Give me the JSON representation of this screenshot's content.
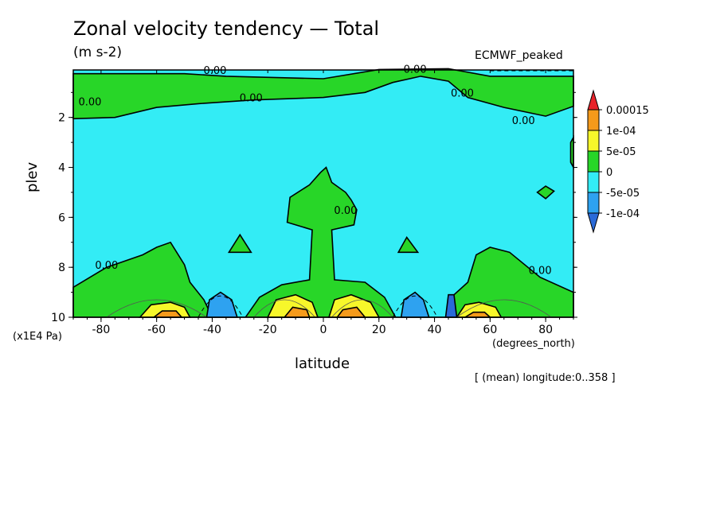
{
  "chart_data": {
    "type": "contour",
    "title": "Zonal velocity tendency — Total",
    "units": "(m s-2)",
    "source": "ECMWF_peaked",
    "xlabel": "latitude",
    "x_unit_label": "(degrees_north)",
    "ylabel": "plev",
    "y_unit_label": "(x1E4 Pa)",
    "note": "[ (mean) longitude:0..358 ]",
    "xlim": [
      -90,
      90
    ],
    "ylim": [
      0.1,
      10
    ],
    "y_inverted": true,
    "x_ticks": [
      -80,
      -60,
      -40,
      -20,
      0,
      20,
      40,
      60,
      80
    ],
    "y_ticks": [
      2,
      4,
      6,
      8,
      10
    ],
    "contour_label": "0.00",
    "colorbar": {
      "levels": [
        "0.00015",
        "1e-04",
        "5e-05",
        "0",
        "-5e-05",
        "-1e-04"
      ],
      "colors": [
        "#e8232a",
        "#f59a1b",
        "#f7f72a",
        "#28d628",
        "#33ecf5",
        "#2ea2f0",
        "#2a6ad8"
      ]
    },
    "regions": [
      {
        "name": "green-top-band",
        "level": "0..5e-05",
        "points": [
          [
            -90,
            0.25
          ],
          [
            -90,
            2.05
          ],
          [
            -75,
            2.0
          ],
          [
            -60,
            1.6
          ],
          [
            -45,
            1.45
          ],
          [
            -25,
            1.3
          ],
          [
            0,
            1.2
          ],
          [
            15,
            1.0
          ],
          [
            25,
            0.6
          ],
          [
            35,
            0.35
          ],
          [
            45,
            0.55
          ],
          [
            52,
            1.2
          ],
          [
            65,
            1.6
          ],
          [
            80,
            1.95
          ],
          [
            90,
            1.55
          ],
          [
            90,
            0.35
          ],
          [
            60,
            0.35
          ],
          [
            45,
            0.05
          ],
          [
            20,
            0.08
          ],
          [
            0,
            0.45
          ],
          [
            -35,
            0.35
          ],
          [
            -50,
            0.25
          ],
          [
            -90,
            0.25
          ]
        ]
      },
      {
        "name": "green-lower-band",
        "level": "0..5e-05",
        "points": [
          [
            -90,
            10
          ],
          [
            -90,
            8.8
          ],
          [
            -78,
            8.0
          ],
          [
            -65,
            7.5
          ],
          [
            -60,
            7.2
          ],
          [
            -55,
            7.0
          ],
          [
            -50,
            7.9
          ],
          [
            -48,
            8.6
          ],
          [
            -43,
            9.3
          ],
          [
            -40,
            10
          ],
          [
            -28,
            10
          ],
          [
            -23,
            9.2
          ],
          [
            -15,
            8.7
          ],
          [
            -5,
            8.5
          ],
          [
            -4,
            6.5
          ],
          [
            -13,
            6.2
          ],
          [
            -12,
            5.2
          ],
          [
            -5,
            4.7
          ],
          [
            -1,
            4.2
          ],
          [
            1,
            4.0
          ],
          [
            3,
            4.6
          ],
          [
            8,
            5.0
          ],
          [
            10,
            5.3
          ],
          [
            12,
            5.7
          ],
          [
            11,
            6.3
          ],
          [
            3,
            6.5
          ],
          [
            4,
            8.5
          ],
          [
            15,
            8.6
          ],
          [
            22,
            9.2
          ],
          [
            26,
            10
          ],
          [
            44,
            10
          ],
          [
            46,
            9.2
          ],
          [
            52,
            8.6
          ],
          [
            55,
            7.5
          ],
          [
            60,
            7.2
          ],
          [
            67,
            7.4
          ],
          [
            78,
            8.4
          ],
          [
            90,
            9.0
          ],
          [
            90,
            10
          ]
        ]
      },
      {
        "name": "green-isle-west",
        "level": "0..5e-05",
        "points": [
          [
            -34,
            7.4
          ],
          [
            -30,
            6.7
          ],
          [
            -26,
            7.4
          ]
        ]
      },
      {
        "name": "green-isle-east",
        "level": "0..5e-05",
        "points": [
          [
            27,
            7.4
          ],
          [
            30,
            6.8
          ],
          [
            34,
            7.4
          ]
        ]
      },
      {
        "name": "green-isle-far-east",
        "level": "0..5e-05",
        "points": [
          [
            77,
            5.0
          ],
          [
            80,
            4.75
          ],
          [
            83,
            4.95
          ],
          [
            80,
            5.25
          ]
        ]
      },
      {
        "name": "green-edge-east",
        "level": "0..5e-05",
        "points": [
          [
            89,
            3.0
          ],
          [
            90,
            2.8
          ],
          [
            90,
            4.0
          ],
          [
            89,
            3.8
          ]
        ]
      },
      {
        "name": "blue-cell-west",
        "level": "-5e-05..0",
        "points": [
          [
            -42,
            10
          ],
          [
            -41,
            9.3
          ],
          [
            -37,
            9.0
          ],
          [
            -33,
            9.3
          ],
          [
            -31,
            10
          ]
        ]
      },
      {
        "name": "blue-cell-east",
        "level": "-5e-05..0",
        "points": [
          [
            28,
            10
          ],
          [
            29,
            9.3
          ],
          [
            33,
            9.0
          ],
          [
            36,
            9.3
          ],
          [
            38,
            10
          ]
        ]
      },
      {
        "name": "darkblue-cell",
        "level": "-1e-04..-5e-05",
        "points": [
          [
            44,
            10
          ],
          [
            45,
            9.1
          ],
          [
            47,
            9.1
          ],
          [
            48,
            10
          ]
        ]
      },
      {
        "name": "yellow-cell-west",
        "level": "5e-05..1e-04",
        "points": [
          [
            -66,
            10
          ],
          [
            -62,
            9.5
          ],
          [
            -55,
            9.4
          ],
          [
            -50,
            9.6
          ],
          [
            -48,
            10
          ]
        ]
      },
      {
        "name": "yellow-cell-center-west",
        "level": "5e-05..1e-04",
        "points": [
          [
            -20,
            10
          ],
          [
            -17,
            9.3
          ],
          [
            -10,
            9.1
          ],
          [
            -4,
            9.4
          ],
          [
            -2,
            10
          ]
        ]
      },
      {
        "name": "yellow-cell-center-east",
        "level": "5e-05..1e-04",
        "points": [
          [
            2,
            10
          ],
          [
            4,
            9.3
          ],
          [
            10,
            9.1
          ],
          [
            17,
            9.4
          ],
          [
            20,
            10
          ]
        ]
      },
      {
        "name": "yellow-cell-east",
        "level": "5e-05..1e-04",
        "points": [
          [
            48,
            10
          ],
          [
            51,
            9.5
          ],
          [
            56,
            9.4
          ],
          [
            62,
            9.6
          ],
          [
            64,
            10
          ]
        ]
      },
      {
        "name": "orange-cell-west",
        "level": "1e-04..0.00015",
        "points": [
          [
            -61,
            10
          ],
          [
            -58,
            9.75
          ],
          [
            -53,
            9.75
          ],
          [
            -51,
            10
          ]
        ]
      },
      {
        "name": "orange-cell-center-west",
        "level": "1e-04..0.00015",
        "points": [
          [
            -14,
            10
          ],
          [
            -11,
            9.6
          ],
          [
            -6,
            9.7
          ],
          [
            -5,
            10
          ]
        ]
      },
      {
        "name": "orange-cell-center-east",
        "level": "1e-04..0.00015",
        "points": [
          [
            5,
            10
          ],
          [
            7,
            9.7
          ],
          [
            12,
            9.6
          ],
          [
            15,
            10
          ]
        ]
      },
      {
        "name": "orange-cell-east",
        "level": "1e-04..0.00015",
        "points": [
          [
            51,
            10
          ],
          [
            54,
            9.8
          ],
          [
            58,
            9.8
          ],
          [
            60,
            10
          ]
        ]
      }
    ],
    "contour_labels": [
      {
        "lat": -84,
        "p": 1.35
      },
      {
        "lat": -39,
        "p": 0.1
      },
      {
        "lat": -26,
        "p": 1.2
      },
      {
        "lat": 33,
        "p": 0.05
      },
      {
        "lat": 50,
        "p": 1.0
      },
      {
        "lat": 72,
        "p": 2.1
      },
      {
        "lat": 8,
        "p": 5.7
      },
      {
        "lat": -78,
        "p": 7.9
      },
      {
        "lat": 78,
        "p": 8.1
      }
    ]
  }
}
